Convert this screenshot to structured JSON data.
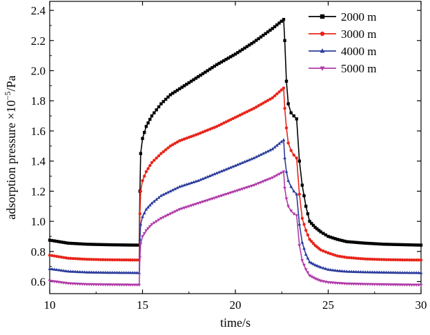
{
  "chart_data": {
    "type": "line",
    "title": "",
    "xlabel": "time/s",
    "ylabel_main": "adsorption pressure ×10",
    "ylabel_exp": "−5",
    "ylabel_unit": "/Pa",
    "xlim": [
      10,
      30
    ],
    "ylim": [
      0.52,
      2.46
    ],
    "x_ticks": [
      10,
      15,
      20,
      25,
      30
    ],
    "x_tick_labels": [
      "10",
      "15",
      "20",
      "25",
      "30"
    ],
    "y_ticks": [
      0.6,
      0.8,
      1.0,
      1.2,
      1.4,
      1.6,
      1.8,
      2.0,
      2.2,
      2.4
    ],
    "y_tick_labels": [
      "0.6",
      "0.8",
      "1.0",
      "1.2",
      "1.4",
      "1.6",
      "1.8",
      "2.0",
      "2.2",
      "2.4"
    ],
    "grid": false,
    "legend_position": "top-right",
    "series": [
      {
        "name": "2000 m",
        "color": "#000000",
        "marker": "square",
        "x": [
          10.0,
          11.0,
          12.0,
          13.0,
          14.0,
          14.82,
          14.86,
          14.9,
          15.0,
          15.2,
          15.5,
          16.0,
          16.5,
          17.0,
          18.0,
          19.0,
          20.0,
          21.0,
          22.0,
          22.6,
          22.66,
          22.75,
          22.85,
          23.0,
          23.15,
          23.3,
          23.45,
          23.6,
          23.8,
          24.0,
          24.3,
          24.6,
          25.0,
          25.5,
          26.0,
          27.0,
          28.0,
          29.0,
          30.0
        ],
        "y": [
          0.875,
          0.855,
          0.848,
          0.845,
          0.843,
          0.842,
          1.2,
          1.45,
          1.55,
          1.63,
          1.7,
          1.78,
          1.84,
          1.88,
          1.96,
          2.04,
          2.11,
          2.19,
          2.28,
          2.34,
          2.2,
          1.93,
          1.78,
          1.72,
          1.7,
          1.68,
          1.4,
          1.24,
          1.1,
          1.0,
          0.96,
          0.93,
          0.9,
          0.88,
          0.865,
          0.855,
          0.848,
          0.845,
          0.842
        ]
      },
      {
        "name": "3000 m",
        "color": "#e8251b",
        "marker": "circle",
        "x": [
          10.0,
          11.0,
          12.0,
          13.0,
          14.0,
          14.82,
          14.86,
          14.9,
          15.0,
          15.2,
          15.5,
          16.0,
          16.5,
          17.0,
          18.0,
          19.0,
          20.0,
          21.0,
          22.0,
          22.6,
          22.66,
          22.75,
          22.85,
          23.0,
          23.15,
          23.3,
          23.45,
          23.6,
          23.8,
          24.0,
          24.3,
          24.6,
          25.0,
          25.5,
          26.0,
          27.0,
          28.0,
          29.0,
          30.0
        ],
        "y": [
          0.775,
          0.755,
          0.748,
          0.745,
          0.744,
          0.743,
          1.05,
          1.2,
          1.27,
          1.33,
          1.39,
          1.45,
          1.5,
          1.535,
          1.58,
          1.63,
          1.69,
          1.75,
          1.82,
          1.885,
          1.75,
          1.62,
          1.52,
          1.47,
          1.44,
          1.42,
          1.18,
          1.02,
          0.94,
          0.88,
          0.84,
          0.81,
          0.79,
          0.77,
          0.76,
          0.75,
          0.746,
          0.744,
          0.743
        ]
      },
      {
        "name": "4000 m",
        "color": "#2b3c9c",
        "marker": "triangle-up",
        "x": [
          10.0,
          11.0,
          12.0,
          13.0,
          14.0,
          14.82,
          14.86,
          14.9,
          15.0,
          15.2,
          15.5,
          16.0,
          16.5,
          17.0,
          18.0,
          19.0,
          20.0,
          21.0,
          22.0,
          22.6,
          22.66,
          22.75,
          22.85,
          23.0,
          23.15,
          23.3,
          23.45,
          23.6,
          23.8,
          24.0,
          24.3,
          24.6,
          25.0,
          25.5,
          26.0,
          27.0,
          28.0,
          29.0,
          30.0
        ],
        "y": [
          0.685,
          0.668,
          0.662,
          0.66,
          0.659,
          0.658,
          0.88,
          0.98,
          1.03,
          1.08,
          1.12,
          1.17,
          1.2,
          1.23,
          1.27,
          1.32,
          1.37,
          1.42,
          1.48,
          1.54,
          1.42,
          1.33,
          1.27,
          1.23,
          1.2,
          1.18,
          0.98,
          0.86,
          0.78,
          0.73,
          0.71,
          0.695,
          0.68,
          0.672,
          0.667,
          0.663,
          0.661,
          0.659,
          0.658
        ]
      },
      {
        "name": "5000 m",
        "color": "#b03aa8",
        "marker": "triangle-down",
        "x": [
          10.0,
          11.0,
          12.0,
          13.0,
          14.0,
          14.82,
          14.86,
          14.9,
          15.0,
          15.2,
          15.5,
          16.0,
          16.5,
          17.0,
          18.0,
          19.0,
          20.0,
          21.0,
          22.0,
          22.6,
          22.66,
          22.75,
          22.85,
          23.0,
          23.15,
          23.3,
          23.45,
          23.6,
          23.8,
          24.0,
          24.3,
          24.6,
          25.0,
          25.5,
          26.0,
          27.0,
          28.0,
          29.0,
          30.0
        ],
        "y": [
          0.605,
          0.588,
          0.582,
          0.58,
          0.579,
          0.578,
          0.76,
          0.85,
          0.9,
          0.94,
          0.98,
          1.02,
          1.05,
          1.08,
          1.12,
          1.16,
          1.2,
          1.24,
          1.29,
          1.33,
          1.22,
          1.15,
          1.1,
          1.07,
          1.05,
          1.04,
          0.84,
          0.74,
          0.68,
          0.64,
          0.62,
          0.605,
          0.595,
          0.59,
          0.586,
          0.583,
          0.581,
          0.579,
          0.578
        ]
      }
    ]
  }
}
